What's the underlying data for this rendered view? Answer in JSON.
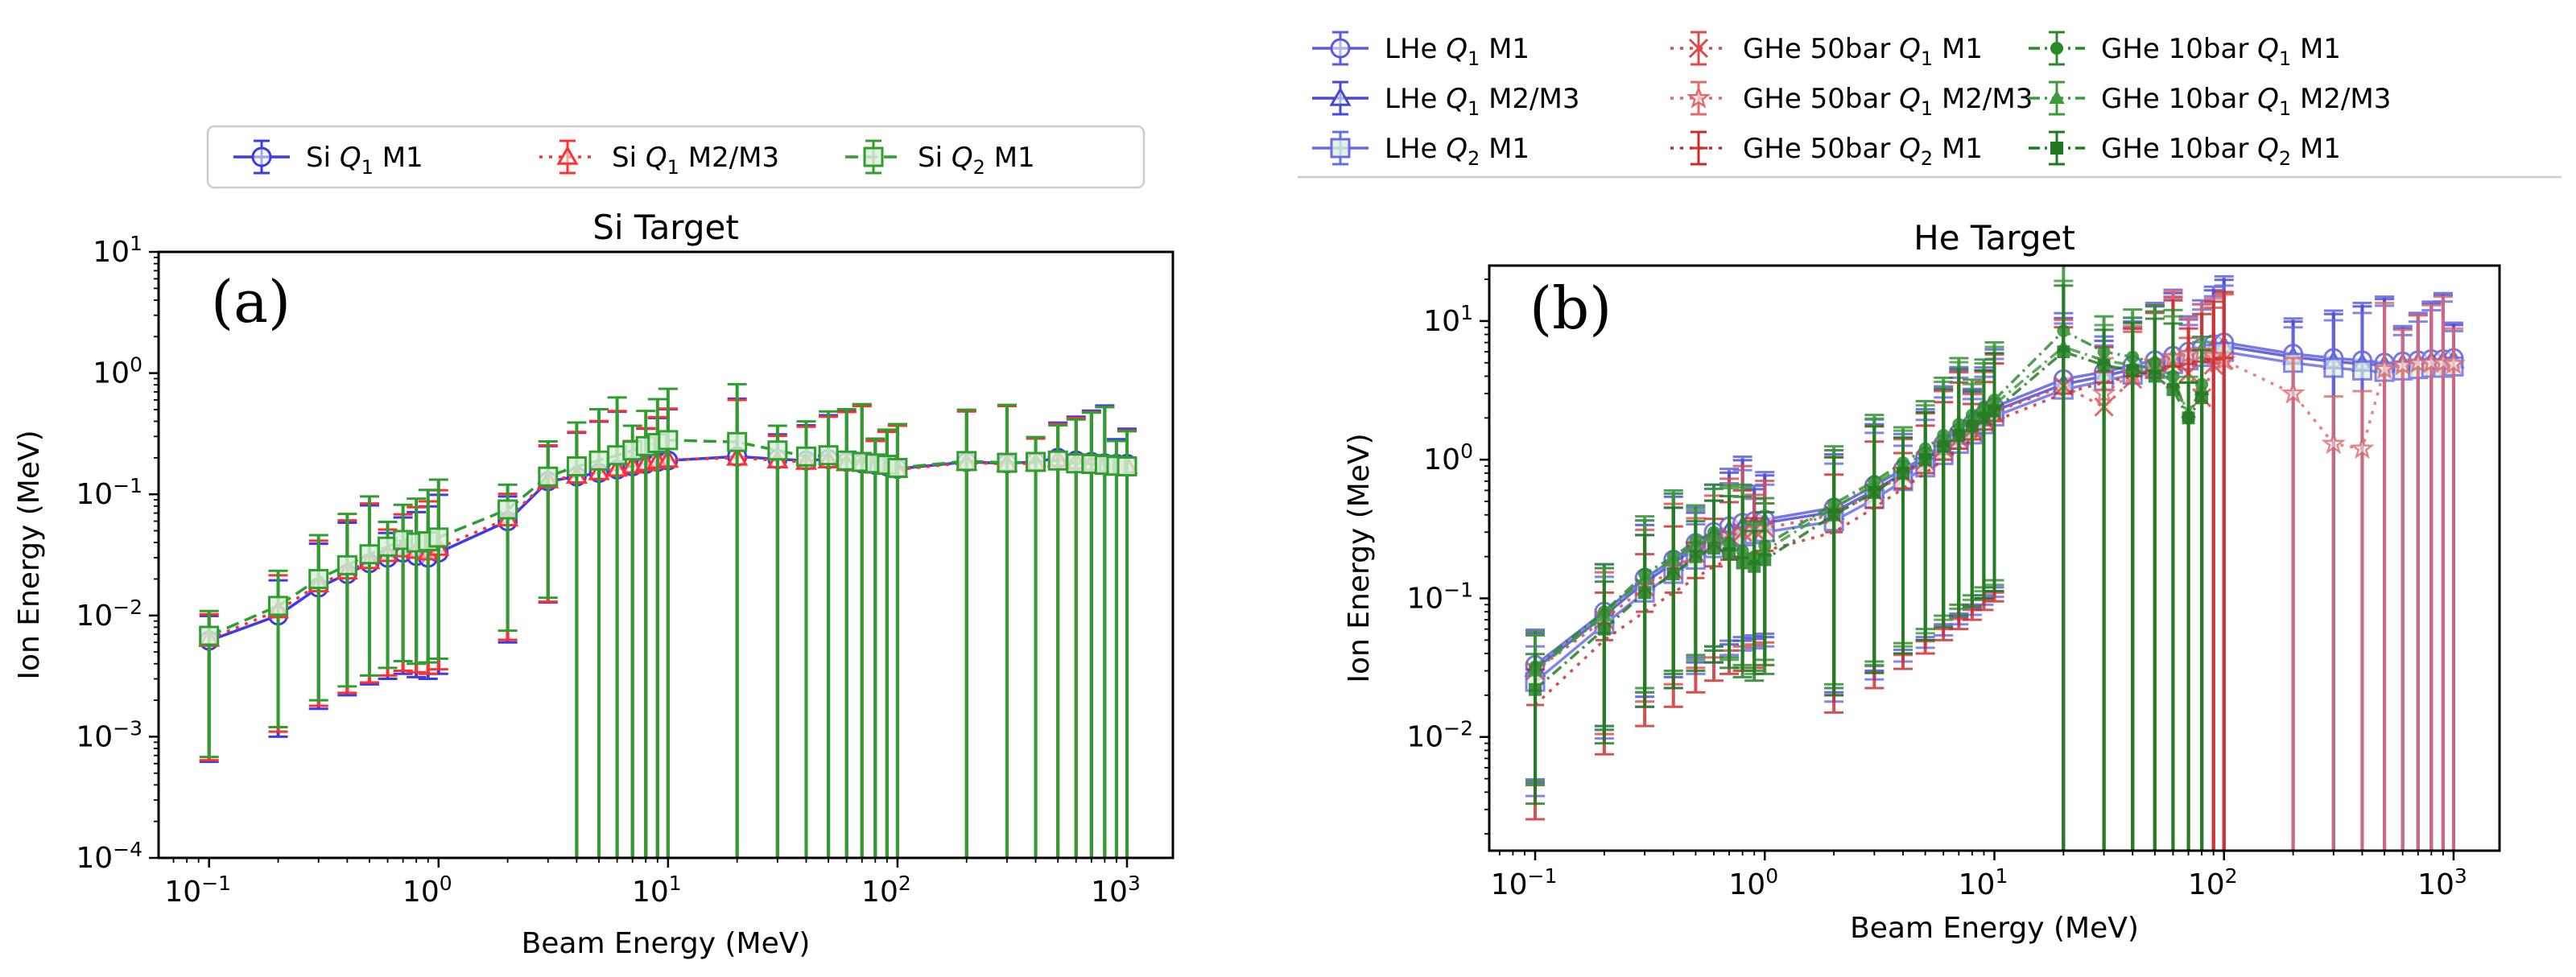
{
  "chart_data": [
    {
      "type": "scatter",
      "panel_label": "(a)",
      "title": "Si Target",
      "xlabel": "Beam Energy (MeV)",
      "ylabel": "Ion Energy (MeV)",
      "xscale": "log",
      "yscale": "log",
      "xlim_exp": [
        -1.22,
        3.2
      ],
      "ylim_exp": [
        -4,
        1
      ],
      "xticks": [
        {
          "base": "10",
          "exp": "−1",
          "v": -1
        },
        {
          "base": "10",
          "exp": "0",
          "v": 0
        },
        {
          "base": "10",
          "exp": "1",
          "v": 1
        },
        {
          "base": "10",
          "exp": "2",
          "v": 2
        },
        {
          "base": "10",
          "exp": "3",
          "v": 3
        }
      ],
      "yticks": [
        {
          "base": "10",
          "exp": "−4",
          "v": -4
        },
        {
          "base": "10",
          "exp": "−3",
          "v": -3
        },
        {
          "base": "10",
          "exp": "−2",
          "v": -2
        },
        {
          "base": "10",
          "exp": "−1",
          "v": -1
        },
        {
          "base": "10",
          "exp": "0",
          "v": 0
        },
        {
          "base": "10",
          "exp": "1",
          "v": 1
        }
      ],
      "legend_position": "above",
      "x": [
        0.1,
        0.2,
        0.3,
        0.4,
        0.5,
        0.6,
        0.7,
        0.8,
        0.9,
        1,
        2,
        3,
        4,
        5,
        6,
        7,
        8,
        9,
        10,
        20,
        30,
        40,
        50,
        60,
        70,
        80,
        90,
        100,
        200,
        300,
        400,
        500,
        600,
        700,
        800,
        900,
        1000
      ],
      "series": [
        {
          "name": "Si Q1 M1",
          "base": "Si ",
          "sym": "Q",
          "sub": "1",
          "suffix": " M1",
          "color": "#3a3aee",
          "marker": "circle",
          "dash": "",
          "y": [
            0.0062,
            0.01,
            0.017,
            0.022,
            0.027,
            0.03,
            0.033,
            0.031,
            0.03,
            0.033,
            0.06,
            0.128,
            0.14,
            0.15,
            0.16,
            0.17,
            0.178,
            0.185,
            0.19,
            0.205,
            0.195,
            0.19,
            0.195,
            0.185,
            0.18,
            0.175,
            0.17,
            0.162,
            0.185,
            0.18,
            0.185,
            0.2,
            0.19,
            0.185,
            0.18,
            0.178,
            0.178
          ],
          "err": 0.9
        },
        {
          "name": "Si Q1 M2/M3",
          "base": "Si ",
          "sym": "Q",
          "sub": "1",
          "suffix": " M2/M3",
          "color": "#ff3030",
          "marker": "triangle",
          "dash": "4 8",
          "y": [
            0.0064,
            0.011,
            0.018,
            0.023,
            0.028,
            0.032,
            0.035,
            0.034,
            0.033,
            0.036,
            0.063,
            0.13,
            0.142,
            0.152,
            0.162,
            0.172,
            0.18,
            0.188,
            0.192,
            0.2,
            0.19,
            0.185,
            0.19,
            0.18,
            0.178,
            0.172,
            0.168,
            0.16,
            0.182,
            0.178,
            0.18,
            0.195,
            0.185,
            0.18,
            0.175,
            0.172,
            0.172
          ],
          "err": 0.9
        },
        {
          "name": "Si Q2 M1",
          "base": "Si ",
          "sym": "Q",
          "sub": "2",
          "suffix": " M1",
          "color": "#2e9e2e",
          "marker": "square",
          "dash": "16 8",
          "y": [
            0.0068,
            0.012,
            0.02,
            0.026,
            0.032,
            0.037,
            0.042,
            0.04,
            0.041,
            0.044,
            0.075,
            0.14,
            0.17,
            0.19,
            0.21,
            0.23,
            0.25,
            0.265,
            0.28,
            0.27,
            0.23,
            0.205,
            0.21,
            0.19,
            0.185,
            0.18,
            0.175,
            0.165,
            0.188,
            0.182,
            0.185,
            0.19,
            0.18,
            0.178,
            0.175,
            0.172,
            0.17
          ],
          "err": 0.9
        }
      ]
    },
    {
      "type": "scatter",
      "panel_label": "(b)",
      "title": "He Target",
      "xlabel": "Beam Energy (MeV)",
      "ylabel": "Ion Energy (MeV)",
      "xscale": "log",
      "yscale": "log",
      "xlim_exp": [
        -1.2,
        3.2
      ],
      "ylim_exp": [
        -2.82,
        1.4
      ],
      "xticks": [
        {
          "base": "10",
          "exp": "−1",
          "v": -1
        },
        {
          "base": "10",
          "exp": "0",
          "v": 0
        },
        {
          "base": "10",
          "exp": "1",
          "v": 1
        },
        {
          "base": "10",
          "exp": "2",
          "v": 2
        },
        {
          "base": "10",
          "exp": "3",
          "v": 3
        }
      ],
      "yticks": [
        {
          "base": "10",
          "exp": "−2",
          "v": -2
        },
        {
          "base": "10",
          "exp": "−1",
          "v": -1
        },
        {
          "base": "10",
          "exp": "0",
          "v": 0
        },
        {
          "base": "10",
          "exp": "1",
          "v": 1
        }
      ],
      "legend_position": "above",
      "series": [
        {
          "name": "LHe Q1 M1",
          "base": "LHe ",
          "sym": "Q",
          "sub": "1",
          "suffix": " M1",
          "color": "#5a5ae0",
          "marker": "circle",
          "dash": "",
          "x": [
            0.1,
            0.2,
            0.3,
            0.4,
            0.5,
            0.6,
            0.7,
            0.8,
            0.9,
            1,
            2,
            3,
            4,
            5,
            6,
            7,
            8,
            9,
            10,
            20,
            30,
            40,
            50,
            60,
            70,
            80,
            90,
            100,
            200,
            300,
            400,
            500,
            600,
            700,
            800,
            900,
            1000
          ],
          "y": [
            0.033,
            0.08,
            0.14,
            0.19,
            0.25,
            0.3,
            0.33,
            0.35,
            0.36,
            0.37,
            0.45,
            0.65,
            0.85,
            1.05,
            1.3,
            1.55,
            1.8,
            2.1,
            2.4,
            3.8,
            4.3,
            4.8,
            5.2,
            5.6,
            6.0,
            6.4,
            6.8,
            7.0,
            5.8,
            5.4,
            5.2,
            5.0,
            5.1,
            5.2,
            5.3,
            5.3,
            5.4
          ],
          "err": 0.85
        },
        {
          "name": "LHe Q1 M2/M3",
          "base": "LHe ",
          "sym": "Q",
          "sub": "1",
          "suffix": " M2/M3",
          "color": "#4848d8",
          "marker": "triangle",
          "dash": "",
          "x": [
            0.1,
            0.2,
            0.3,
            0.4,
            0.5,
            0.6,
            0.7,
            0.8,
            0.9,
            1,
            2,
            3,
            4,
            5,
            6,
            7,
            8,
            9,
            10,
            20,
            30,
            40,
            50,
            60,
            70,
            80,
            90,
            100,
            200,
            300,
            400,
            500,
            600,
            700,
            800,
            900,
            1000
          ],
          "y": [
            0.031,
            0.075,
            0.13,
            0.18,
            0.23,
            0.28,
            0.31,
            0.33,
            0.34,
            0.35,
            0.42,
            0.6,
            0.8,
            1.0,
            1.22,
            1.45,
            1.7,
            2.0,
            2.25,
            3.5,
            4.0,
            4.5,
            4.9,
            5.3,
            5.7,
            6.0,
            6.4,
            6.6,
            5.5,
            5.1,
            4.9,
            4.8,
            4.9,
            5.0,
            5.1,
            5.1,
            5.2
          ],
          "err": 0.85
        },
        {
          "name": "LHe Q2 M1",
          "base": "LHe ",
          "sym": "Q",
          "sub": "2",
          "suffix": " M1",
          "color": "#6a6ae6",
          "marker": "square",
          "dash": "",
          "x": [
            0.1,
            0.2,
            0.3,
            0.4,
            0.5,
            0.6,
            0.7,
            0.8,
            0.9,
            1,
            2,
            3,
            4,
            5,
            6,
            7,
            8,
            9,
            10,
            20,
            30,
            40,
            50,
            60,
            70,
            80,
            90,
            100,
            200,
            300,
            400,
            500,
            600,
            700,
            800,
            900,
            1000
          ],
          "y": [
            0.025,
            0.065,
            0.11,
            0.15,
            0.19,
            0.23,
            0.26,
            0.28,
            0.29,
            0.3,
            0.36,
            0.52,
            0.7,
            0.88,
            1.08,
            1.3,
            1.52,
            1.8,
            2.05,
            3.2,
            3.7,
            4.1,
            4.5,
            4.9,
            5.2,
            5.5,
            5.8,
            6.0,
            5.0,
            4.6,
            4.4,
            4.3,
            4.4,
            4.5,
            4.6,
            4.6,
            4.7
          ],
          "err": 0.85
        },
        {
          "name": "GHe 50bar Q1 M1",
          "base": "GHe 50bar ",
          "sym": "Q",
          "sub": "1",
          "suffix": " M1",
          "color": "#dd4a4a",
          "marker": "x",
          "dash": "4 8",
          "x": [
            0.1,
            0.2,
            0.3,
            0.4,
            0.5,
            0.6,
            0.7,
            0.8,
            0.9,
            1,
            2,
            3,
            4,
            5,
            6,
            7,
            8,
            9,
            10,
            20,
            30,
            40,
            50,
            60,
            70,
            80,
            90,
            100
          ],
          "y": [
            0.03,
            0.07,
            0.12,
            0.16,
            0.21,
            0.25,
            0.28,
            0.3,
            0.31,
            0.32,
            0.4,
            0.58,
            0.78,
            0.98,
            1.2,
            1.42,
            1.65,
            1.95,
            2.2,
            3.4,
            2.4,
            3.8,
            4.5,
            5.0,
            4.2,
            2.8,
            4.8,
            5.2
          ],
          "err": 0.85
        },
        {
          "name": "GHe 50bar Q1 M2/M3",
          "base": "GHe 50bar ",
          "sym": "Q",
          "sub": "1",
          "suffix": " M2/M3",
          "color": "#e26a6a",
          "marker": "star",
          "dash": "4 8",
          "x": [
            30,
            40,
            50,
            60,
            70,
            80,
            90,
            100,
            200,
            300,
            400,
            500,
            600,
            700,
            800,
            900,
            1000
          ],
          "y": [
            3.0,
            4.2,
            5.0,
            5.5,
            5.8,
            6.0,
            5.6,
            5.2,
            3.0,
            1.3,
            1.2,
            4.5,
            4.8,
            5.0,
            5.0,
            5.0,
            4.9
          ],
          "err": 0.85
        },
        {
          "name": "GHe 50bar Q2 M1",
          "base": "GHe 50bar ",
          "sym": "Q",
          "sub": "2",
          "suffix": " M1",
          "color": "#cc2a2a",
          "marker": "plus",
          "dash": "4 8",
          "x": [
            0.1,
            0.2,
            0.3,
            0.4,
            0.5,
            0.6,
            0.7,
            0.8,
            0.9,
            1,
            2,
            3,
            4,
            5,
            6,
            7,
            8,
            9,
            10,
            20,
            30,
            40,
            50,
            60,
            70,
            80,
            90,
            100
          ],
          "y": [
            0.017,
            0.05,
            0.08,
            0.11,
            0.14,
            0.17,
            0.19,
            0.2,
            0.21,
            0.22,
            0.3,
            0.45,
            0.62,
            0.8,
            1.0,
            1.2,
            1.4,
            1.65,
            1.9,
            3.0,
            3.6,
            4.0,
            4.4,
            4.7,
            4.9,
            5.1,
            5.3,
            5.4
          ],
          "err": 0.85
        },
        {
          "name": "GHe 10bar Q1 M1",
          "base": "GHe 10bar ",
          "sym": "Q",
          "sub": "1",
          "suffix": " M1",
          "color": "#2a8a2a",
          "marker": "circle-filled",
          "dash": "14 6 3 6",
          "x": [
            0.1,
            0.2,
            0.3,
            0.4,
            0.5,
            0.6,
            0.7,
            0.8,
            0.9,
            1,
            2,
            3,
            4,
            5,
            6,
            7,
            8,
            9,
            10,
            20,
            30,
            40,
            50,
            60,
            70,
            80
          ],
          "y": [
            0.032,
            0.08,
            0.15,
            0.2,
            0.26,
            0.3,
            0.25,
            0.22,
            0.2,
            0.24,
            0.48,
            0.7,
            0.95,
            1.2,
            1.5,
            1.8,
            2.1,
            2.4,
            2.7,
            8.5,
            6.0,
            5.5,
            5.0,
            4.0,
            2.0,
            3.5
          ],
          "err": 0.85
        },
        {
          "name": "GHe 10bar Q1 M2/M3",
          "base": "GHe 10bar ",
          "sym": "Q",
          "sub": "1",
          "suffix": " M2/M3",
          "color": "#3c9a3c",
          "marker": "triangle-filled",
          "dash": "14 6 3 6",
          "x": [
            0.1,
            0.2,
            0.3,
            0.4,
            0.5,
            0.6,
            0.7,
            0.8,
            0.9,
            1,
            2,
            3,
            4,
            5,
            6,
            7,
            8,
            9,
            10,
            20,
            30,
            40,
            50,
            60,
            70,
            80
          ],
          "y": [
            0.03,
            0.075,
            0.14,
            0.19,
            0.24,
            0.28,
            0.24,
            0.21,
            0.19,
            0.22,
            0.45,
            0.66,
            0.9,
            1.12,
            1.4,
            1.68,
            1.95,
            2.25,
            2.5,
            6.5,
            5.2,
            4.8,
            4.5,
            3.6,
            2.2,
            3.2
          ],
          "err": 0.85
        },
        {
          "name": "GHe 10bar Q2 M1",
          "base": "GHe 10bar ",
          "sym": "Q",
          "sub": "2",
          "suffix": " M1",
          "color": "#1e7a1e",
          "marker": "square-filled",
          "dash": "14 6 3 6",
          "x": [
            0.1,
            0.2,
            0.3,
            0.4,
            0.5,
            0.6,
            0.7,
            0.8,
            0.9,
            1,
            2,
            3,
            4,
            5,
            6,
            7,
            8,
            9,
            10,
            20,
            30,
            40,
            50,
            60,
            70,
            80
          ],
          "y": [
            0.022,
            0.06,
            0.11,
            0.15,
            0.2,
            0.23,
            0.21,
            0.18,
            0.17,
            0.19,
            0.4,
            0.58,
            0.8,
            1.0,
            1.25,
            1.5,
            1.75,
            2.0,
            2.25,
            6.0,
            4.8,
            4.4,
            4.0,
            3.2,
            2.0,
            2.8
          ],
          "err": 0.85
        }
      ]
    }
  ]
}
